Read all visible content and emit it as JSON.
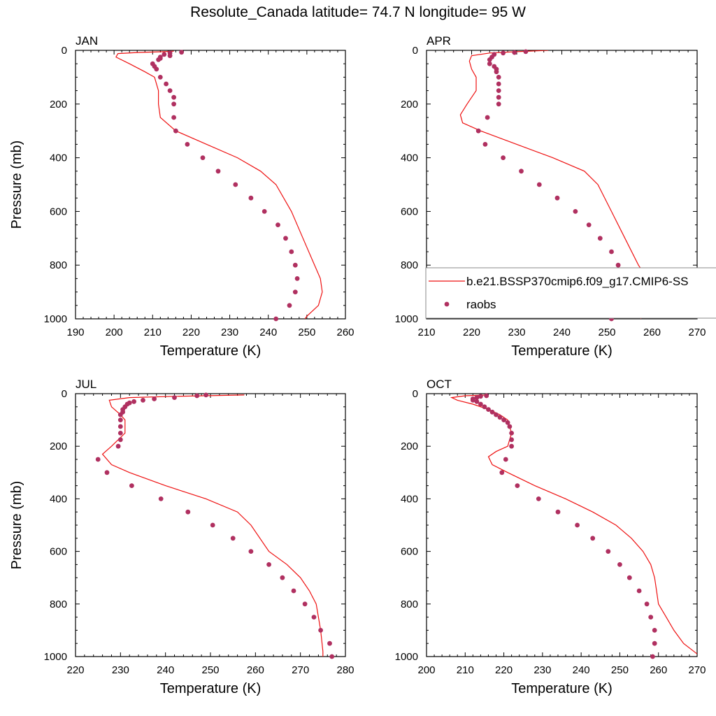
{
  "figure": {
    "title": "Resolute_Canada  latitude= 74.7 N longitude= 95 W"
  },
  "legend": {
    "model_label": "b.e21.BSSP370cmip6.f09_g17.CMIP6-SS",
    "obs_label": "raobs",
    "placement": "inside APR panel, lower right"
  },
  "colors": {
    "model_line": "#ee1111",
    "obs_marker": "#b03060",
    "axis": "#000000"
  },
  "chart_data": [
    {
      "type": "line",
      "title": "JAN",
      "xlabel": "Temperature (K)",
      "ylabel": "Pressure (mb)",
      "xlim": [
        190,
        260
      ],
      "ylim": [
        1000,
        0
      ],
      "xticks": [
        190,
        200,
        210,
        220,
        230,
        240,
        250,
        260
      ],
      "yticks": [
        0,
        200,
        400,
        600,
        800,
        1000
      ],
      "series": [
        {
          "name": "b.e21.BSSP370cmip6.f09_g17.CMIP6-SS",
          "kind": "line",
          "points": [
            [
              215.5,
              3
            ],
            [
              213,
              5
            ],
            [
              206,
              8
            ],
            [
              201,
              12
            ],
            [
              200.5,
              25
            ],
            [
              204,
              50
            ],
            [
              208,
              80
            ],
            [
              210.5,
              100
            ],
            [
              211.5,
              150
            ],
            [
              211.5,
              200
            ],
            [
              212,
              250
            ],
            [
              216,
              300
            ],
            [
              224,
              350
            ],
            [
              232,
              400
            ],
            [
              238,
              450
            ],
            [
              242,
              500
            ],
            [
              246,
              600
            ],
            [
              249,
              700
            ],
            [
              252,
              800
            ],
            [
              253.5,
              850
            ],
            [
              254,
              900
            ],
            [
              253,
              950
            ],
            [
              250,
              990
            ],
            [
              249.5,
              1000
            ]
          ]
        },
        {
          "name": "raobs",
          "kind": "scatter",
          "points": [
            [
              217.5,
              7
            ],
            [
              214.5,
              10
            ],
            [
              213,
              15
            ],
            [
              214.5,
              20
            ],
            [
              212,
              25
            ],
            [
              212,
              30
            ],
            [
              211.5,
              35
            ],
            [
              210,
              50
            ],
            [
              210.5,
              60
            ],
            [
              211,
              70
            ],
            [
              212,
              100
            ],
            [
              213.5,
              125
            ],
            [
              214.5,
              150
            ],
            [
              215.5,
              175
            ],
            [
              215.5,
              200
            ],
            [
              215.5,
              250
            ],
            [
              216,
              300
            ],
            [
              219,
              350
            ],
            [
              223,
              400
            ],
            [
              227,
              450
            ],
            [
              231.5,
              500
            ],
            [
              235.5,
              550
            ],
            [
              239,
              600
            ],
            [
              242.5,
              650
            ],
            [
              244.5,
              700
            ],
            [
              246,
              750
            ],
            [
              247,
              800
            ],
            [
              247.5,
              850
            ],
            [
              247,
              900
            ],
            [
              245.5,
              950
            ],
            [
              242,
              1000
            ]
          ]
        }
      ]
    },
    {
      "type": "line",
      "title": "APR",
      "xlabel": "Temperature (K)",
      "ylabel": "",
      "xlim": [
        210,
        270
      ],
      "ylim": [
        1000,
        0
      ],
      "xticks": [
        210,
        220,
        230,
        240,
        250,
        260,
        270
      ],
      "yticks": [
        0,
        200,
        400,
        600,
        800,
        1000
      ],
      "series": [
        {
          "name": "b.e21.BSSP370cmip6.f09_g17.CMIP6-SS",
          "kind": "line",
          "points": [
            [
              237,
              0
            ],
            [
              230,
              5
            ],
            [
              224,
              10
            ],
            [
              220,
              20
            ],
            [
              219.5,
              40
            ],
            [
              220,
              70
            ],
            [
              221,
              100
            ],
            [
              221,
              150
            ],
            [
              219,
              200
            ],
            [
              217.5,
              240
            ],
            [
              218,
              270
            ],
            [
              222,
              300
            ],
            [
              230,
              350
            ],
            [
              238,
              400
            ],
            [
              245,
              450
            ],
            [
              248,
              500
            ],
            [
              251,
              600
            ],
            [
              254,
              700
            ],
            [
              257,
              800
            ],
            [
              259,
              850
            ],
            [
              259.5,
              900
            ],
            [
              258.5,
              950
            ],
            [
              257.5,
              1000
            ]
          ]
        },
        {
          "name": "raobs",
          "kind": "scatter",
          "points": [
            [
              232,
              5
            ],
            [
              229.5,
              8
            ],
            [
              227,
              10
            ],
            [
              225,
              15
            ],
            [
              224.5,
              25
            ],
            [
              224,
              35
            ],
            [
              224,
              50
            ],
            [
              225,
              60
            ],
            [
              225.5,
              70
            ],
            [
              225.5,
              80
            ],
            [
              226,
              100
            ],
            [
              226,
              125
            ],
            [
              226,
              150
            ],
            [
              226,
              175
            ],
            [
              226,
              200
            ],
            [
              223.5,
              250
            ],
            [
              221.5,
              300
            ],
            [
              223,
              350
            ],
            [
              227,
              400
            ],
            [
              231,
              450
            ],
            [
              235,
              500
            ],
            [
              239,
              550
            ],
            [
              243,
              600
            ],
            [
              246,
              650
            ],
            [
              248.5,
              700
            ],
            [
              251,
              750
            ],
            [
              252.5,
              800
            ],
            [
              254,
              850
            ],
            [
              254,
              900
            ],
            [
              253,
              950
            ],
            [
              251,
              1000
            ]
          ]
        }
      ]
    },
    {
      "type": "line",
      "title": "JUL",
      "xlabel": "Temperature (K)",
      "ylabel": "Pressure (mb)",
      "xlim": [
        220,
        280
      ],
      "ylim": [
        1000,
        0
      ],
      "xticks": [
        220,
        230,
        240,
        250,
        260,
        270,
        280
      ],
      "yticks": [
        0,
        200,
        400,
        600,
        800,
        1000
      ],
      "series": [
        {
          "name": "b.e21.BSSP370cmip6.f09_g17.CMIP6-SS",
          "kind": "line",
          "points": [
            [
              257.5,
              5
            ],
            [
              242,
              10
            ],
            [
              232,
              15
            ],
            [
              227.5,
              25
            ],
            [
              228,
              50
            ],
            [
              230,
              80
            ],
            [
              231,
              100
            ],
            [
              231,
              150
            ],
            [
              228,
              200
            ],
            [
              226,
              230
            ],
            [
              228,
              270
            ],
            [
              232,
              300
            ],
            [
              240,
              350
            ],
            [
              249,
              400
            ],
            [
              256,
              450
            ],
            [
              259,
              500
            ],
            [
              263,
              600
            ],
            [
              267,
              650
            ],
            [
              270,
              700
            ],
            [
              272,
              750
            ],
            [
              273.5,
              800
            ],
            [
              274.5,
              900
            ],
            [
              275,
              980
            ],
            [
              275,
              1000
            ]
          ]
        },
        {
          "name": "raobs",
          "kind": "scatter",
          "points": [
            [
              249,
              5
            ],
            [
              247,
              8
            ],
            [
              242,
              15
            ],
            [
              237.5,
              20
            ],
            [
              235,
              25
            ],
            [
              233,
              30
            ],
            [
              232,
              35
            ],
            [
              231.5,
              40
            ],
            [
              231,
              50
            ],
            [
              230.5,
              60
            ],
            [
              230.5,
              70
            ],
            [
              230,
              80
            ],
            [
              230,
              100
            ],
            [
              230,
              125
            ],
            [
              230,
              150
            ],
            [
              230,
              175
            ],
            [
              229.5,
              200
            ],
            [
              225,
              250
            ],
            [
              227,
              300
            ],
            [
              232.5,
              350
            ],
            [
              239,
              400
            ],
            [
              245,
              450
            ],
            [
              250.5,
              500
            ],
            [
              255,
              550
            ],
            [
              259,
              600
            ],
            [
              263,
              650
            ],
            [
              266,
              700
            ],
            [
              268.5,
              750
            ],
            [
              271,
              800
            ],
            [
              273,
              850
            ],
            [
              274.5,
              900
            ],
            [
              276.5,
              950
            ],
            [
              277,
              1000
            ]
          ]
        }
      ]
    },
    {
      "type": "line",
      "title": "OCT",
      "xlabel": "Temperature (K)",
      "ylabel": "",
      "xlim": [
        200,
        270
      ],
      "ylim": [
        1000,
        0
      ],
      "xticks": [
        200,
        210,
        220,
        230,
        240,
        250,
        260,
        270
      ],
      "yticks": [
        0,
        200,
        400,
        600,
        800,
        1000
      ],
      "series": [
        {
          "name": "b.e21.BSSP370cmip6.f09_g17.CMIP6-SS",
          "kind": "line",
          "points": [
            [
              216,
              5
            ],
            [
              210,
              8
            ],
            [
              206.5,
              15
            ],
            [
              208,
              25
            ],
            [
              212,
              40
            ],
            [
              216,
              60
            ],
            [
              219,
              80
            ],
            [
              221,
              100
            ],
            [
              222,
              150
            ],
            [
              221,
              200
            ],
            [
              218,
              220
            ],
            [
              216,
              240
            ],
            [
              217,
              270
            ],
            [
              221,
              300
            ],
            [
              228,
              350
            ],
            [
              236,
              400
            ],
            [
              243,
              450
            ],
            [
              249,
              500
            ],
            [
              253,
              550
            ],
            [
              256,
              600
            ],
            [
              258,
              650
            ],
            [
              259,
              700
            ],
            [
              259.5,
              750
            ],
            [
              260,
              800
            ],
            [
              262,
              850
            ],
            [
              264,
              900
            ],
            [
              266.5,
              950
            ],
            [
              270,
              990
            ]
          ]
        },
        {
          "name": "raobs",
          "kind": "scatter",
          "points": [
            [
              215.5,
              8
            ],
            [
              214,
              10
            ],
            [
              213,
              15
            ],
            [
              212,
              20
            ],
            [
              212,
              25
            ],
            [
              213,
              30
            ],
            [
              214,
              40
            ],
            [
              215,
              50
            ],
            [
              216,
              60
            ],
            [
              217,
              70
            ],
            [
              218,
              80
            ],
            [
              219,
              90
            ],
            [
              220,
              100
            ],
            [
              221,
              110
            ],
            [
              221.5,
              125
            ],
            [
              222,
              150
            ],
            [
              222,
              175
            ],
            [
              222,
              200
            ],
            [
              220.5,
              250
            ],
            [
              219.5,
              300
            ],
            [
              223.5,
              350
            ],
            [
              229,
              400
            ],
            [
              234,
              450
            ],
            [
              239,
              500
            ],
            [
              243,
              550
            ],
            [
              247,
              600
            ],
            [
              250,
              650
            ],
            [
              252.5,
              700
            ],
            [
              255,
              750
            ],
            [
              257,
              800
            ],
            [
              258,
              850
            ],
            [
              259,
              900
            ],
            [
              259,
              950
            ],
            [
              258.5,
              1000
            ]
          ]
        }
      ]
    }
  ]
}
